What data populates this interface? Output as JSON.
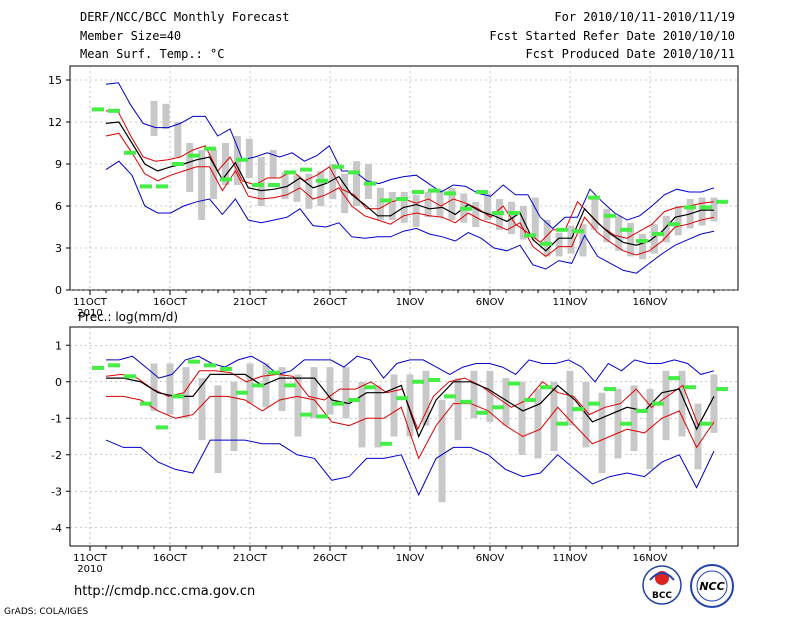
{
  "header": {
    "title": "DERF/NCC/BCC Monthly Forecast",
    "member_size": "Member Size=40",
    "variable": "Mean Surf. Temp.: °C",
    "period": "For 2010/10/11-2010/11/19",
    "started": "Fcst Started Refer Date 2010/10/10",
    "produced": "Fcst Produced Date 2010/10/11"
  },
  "footer": {
    "url": "http://cmdp.ncc.cma.gov.cn",
    "grads": "GrADS: COLA/IGES",
    "logo_bcc_text": "BCC",
    "logo_ncc_text": "NCC"
  },
  "colors": {
    "envelope": "#0000cc",
    "spread": "#dd0000",
    "mean": "#000000",
    "box": "#c8c8c8",
    "marker": "#44ee44",
    "grid": "#999999"
  },
  "chart_data": [
    {
      "type": "line",
      "title": "Mean Surf. Temp.: °C",
      "x_start": "2010-10-11",
      "x_tick_labels": [
        "11OCT",
        "16OCT",
        "21OCT",
        "26OCT",
        "1NOV",
        "6NOV",
        "11NOV",
        "16NOV"
      ],
      "x_year_label": "2010",
      "ylim": [
        0,
        16
      ],
      "yticks": [
        0,
        3,
        6,
        9,
        12,
        15
      ],
      "grid": true,
      "series": [
        {
          "name": "max",
          "values": [
            14.7,
            14.8,
            13.2,
            11.9,
            11.6,
            11.6,
            11.9,
            12.4,
            12.4,
            11.0,
            11.5,
            9.3,
            9.5,
            9.8,
            9.5,
            9.8,
            9.2,
            9.6,
            10.3,
            8.5,
            8.5,
            7.8,
            7.6,
            7.9,
            8.1,
            8.2,
            7.6,
            7.0,
            7.5,
            7.4,
            6.9,
            6.7,
            7.5,
            6.8,
            6.8,
            5.2,
            4.4,
            5.2,
            5.2,
            7.2,
            6.3,
            5.5,
            5.0,
            5.3,
            6.0,
            6.8,
            7.2,
            7.0,
            7.0,
            7.3
          ]
        },
        {
          "name": "upper",
          "values": [
            12.8,
            12.7,
            11.0,
            9.5,
            9.2,
            9.3,
            9.5,
            10.0,
            10.3,
            8.5,
            9.5,
            7.8,
            7.5,
            8.0,
            8.0,
            8.5,
            7.8,
            8.2,
            8.8,
            7.2,
            6.8,
            5.8,
            5.8,
            6.3,
            6.5,
            6.2,
            6.5,
            6.0,
            6.5,
            6.2,
            5.8,
            5.2,
            6.0,
            4.7,
            4.1,
            3.4,
            4.3,
            4.3,
            6.3,
            5.4,
            4.5,
            3.9,
            3.7,
            4.2,
            4.7,
            5.6,
            5.9,
            6.0,
            6.2,
            6.3
          ]
        },
        {
          "name": "mean",
          "values": [
            11.9,
            12.0,
            10.5,
            9.0,
            8.5,
            8.8,
            9.0,
            9.3,
            9.5,
            7.9,
            9.1,
            7.3,
            7.1,
            7.2,
            7.4,
            8.0,
            7.3,
            7.6,
            8.1,
            6.8,
            6.1,
            5.3,
            5.3,
            5.9,
            6.1,
            5.8,
            5.9,
            5.4,
            6.1,
            5.6,
            5.3,
            4.9,
            5.5,
            3.6,
            2.8,
            3.7,
            3.7,
            5.8,
            4.8,
            4.0,
            3.4,
            3.2,
            3.5,
            4.2,
            5.2,
            5.4,
            5.7,
            5.7
          ]
        },
        {
          "name": "lower",
          "values": [
            11.0,
            11.2,
            9.8,
            8.3,
            7.8,
            8.2,
            8.5,
            8.8,
            8.8,
            7.1,
            8.5,
            6.7,
            6.5,
            6.6,
            6.8,
            7.3,
            6.5,
            6.8,
            7.3,
            6.0,
            5.3,
            5.0,
            4.7,
            5.3,
            5.5,
            5.3,
            5.2,
            4.8,
            5.5,
            5.0,
            4.7,
            4.3,
            4.8,
            3.1,
            2.4,
            3.1,
            3.1,
            5.2,
            4.1,
            3.4,
            2.8,
            2.5,
            2.8,
            3.5,
            4.5,
            4.7,
            5.0,
            5.2
          ]
        },
        {
          "name": "min",
          "values": [
            8.6,
            9.2,
            8.2,
            6.0,
            5.5,
            5.5,
            6.0,
            6.3,
            6.5,
            5.4,
            6.5,
            5.0,
            4.8,
            5.0,
            5.2,
            5.8,
            4.6,
            4.5,
            4.8,
            3.8,
            3.7,
            3.8,
            3.8,
            4.2,
            4.4,
            4.0,
            3.8,
            3.5,
            4.1,
            3.7,
            3.0,
            2.8,
            3.2,
            1.8,
            1.5,
            2.1,
            1.9,
            3.9,
            2.4,
            1.9,
            1.4,
            1.2,
            1.9,
            2.6,
            3.2,
            3.6,
            4.0,
            4.2
          ]
        },
        {
          "name": "box_top",
          "values": [
            13.5,
            13.3,
            12.0,
            10.5,
            10.0,
            10.0,
            10.5,
            11.0,
            10.8,
            9.5,
            10.0,
            8.4,
            8.2,
            8.3,
            8.5,
            9.0,
            8.3,
            9.2,
            9.0,
            7.3,
            7.0,
            7.0,
            6.8,
            7.0,
            7.2,
            7.3,
            6.9,
            6.3,
            6.9,
            6.5,
            6.3,
            6.0,
            6.6,
            5.0,
            4.1,
            4.6,
            4.7,
            6.5,
            5.8,
            5.3,
            4.8,
            4.0,
            4.7,
            5.3,
            6.0,
            6.5,
            6.6,
            6.6
          ]
        },
        {
          "name": "box_bottom",
          "values": [
            11.0,
            11.5,
            9.5,
            7.0,
            5.0,
            6.5,
            7.5,
            7.5,
            8.0,
            6.0,
            8.0,
            6.5,
            6.3,
            5.8,
            6.0,
            6.5,
            5.5,
            6.0,
            6.5,
            5.0,
            5.0,
            4.8,
            4.5,
            5.2,
            5.2,
            5.0,
            4.8,
            4.5,
            5.0,
            4.3,
            4.0,
            3.6,
            3.6,
            2.4,
            2.4,
            2.6,
            2.4,
            4.3,
            3.4,
            2.8,
            2.4,
            2.2,
            2.6,
            3.4,
            3.9,
            4.4,
            4.6,
            4.9
          ]
        },
        {
          "name": "observed",
          "values": [
            12.9,
            12.8,
            9.8,
            7.4,
            7.4,
            9.0,
            9.6,
            10.1,
            7.9,
            9.3,
            7.5,
            7.5,
            8.4,
            8.6,
            7.8,
            8.8,
            8.4,
            7.6,
            6.4,
            6.5,
            7.0,
            7.1,
            6.9,
            5.8,
            7.0,
            5.5,
            5.5,
            3.9,
            3.3,
            4.3,
            4.2,
            6.6,
            5.3,
            4.3,
            3.5,
            4.0,
            4.7,
            5.9,
            5.9,
            6.3
          ]
        }
      ]
    },
    {
      "type": "line",
      "title": "Prec.: log(mm/d)",
      "x_start": "2010-10-11",
      "x_tick_labels": [
        "11OCT",
        "16OCT",
        "21OCT",
        "26OCT",
        "1NOV",
        "6NOV",
        "11NOV",
        "16NOV"
      ],
      "x_year_label": "2010",
      "ylim": [
        -4.5,
        1.5
      ],
      "yticks": [
        -4,
        -3,
        -2,
        -1,
        0,
        1
      ],
      "grid": true,
      "series": [
        {
          "name": "max",
          "values": [
            0.6,
            0.6,
            0.7,
            0.4,
            0.1,
            0.2,
            0.6,
            0.7,
            0.5,
            0.4,
            0.6,
            0.7,
            0.5,
            0.2,
            0.3,
            0.6,
            0.6,
            0.6,
            0.4,
            0.7,
            0.6,
            0.1,
            0.5,
            0.6,
            0.6,
            0.4,
            0.2,
            0.4,
            0.5,
            0.5,
            0.4,
            0.2,
            0.6,
            0.5,
            0.5,
            0.6,
            0.4,
            0.0,
            0.5,
            0.3,
            0.6,
            0.5,
            0.5,
            0.6,
            0.5,
            0.2,
            0.3
          ]
        },
        {
          "name": "upper",
          "values": [
            0.15,
            0.2,
            0.1,
            -0.2,
            -0.4,
            -0.3,
            0.3,
            0.3,
            0.25,
            0.0,
            0.15,
            0.2,
            0.15,
            -0.4,
            -0.5,
            -0.2,
            -0.2,
            0.0,
            -0.3,
            -0.2,
            -1.3,
            -0.4,
            0.0,
            0.1,
            -0.1,
            -0.4,
            -0.7,
            -0.5,
            0.0,
            -0.3,
            -0.4,
            -0.9,
            -0.7,
            -0.6,
            -0.2,
            -0.7,
            -0.4,
            -0.1,
            -1.2,
            -0.4
          ]
        },
        {
          "name": "mean",
          "values": [
            0.1,
            0.1,
            0.0,
            -0.3,
            -0.4,
            -0.4,
            0.2,
            0.2,
            0.2,
            -0.1,
            0.1,
            0.1,
            0.1,
            -0.5,
            -0.6,
            -0.3,
            -0.3,
            -0.1,
            -1.5,
            -0.5,
            -0.0,
            0.0,
            -0.2,
            -0.5,
            -0.8,
            -0.6,
            -0.1,
            -0.5,
            -1.1,
            -0.9,
            -0.7,
            -0.8,
            -0.3,
            -0.2,
            -1.3,
            -0.4
          ]
        },
        {
          "name": "lower",
          "values": [
            -0.4,
            -0.4,
            -0.5,
            -0.8,
            -1.0,
            -0.9,
            -0.4,
            -0.4,
            -0.5,
            -0.8,
            -0.5,
            -0.4,
            -0.5,
            -1.1,
            -1.2,
            -1.0,
            -1.0,
            -0.7,
            -2.1,
            -1.2,
            -0.6,
            -0.6,
            -0.8,
            -1.2,
            -1.5,
            -1.3,
            -0.7,
            -1.2,
            -1.7,
            -1.5,
            -1.3,
            -1.4,
            -1.0,
            -0.8,
            -1.8,
            -1.1
          ]
        },
        {
          "name": "min",
          "values": [
            -1.6,
            -1.8,
            -1.8,
            -2.2,
            -2.4,
            -2.5,
            -1.6,
            -1.6,
            -1.6,
            -1.7,
            -1.7,
            -2.0,
            -2.1,
            -2.7,
            -2.6,
            -2.1,
            -2.1,
            -2.0,
            -3.1,
            -2.1,
            -1.8,
            -1.8,
            -2.0,
            -2.4,
            -2.6,
            -2.5,
            -2.0,
            -2.4,
            -2.8,
            -2.6,
            -2.5,
            -2.6,
            -2.2,
            -2.0,
            -2.9,
            -1.9
          ]
        },
        {
          "name": "box_top",
          "values": [
            0.5,
            0.5,
            0.4,
            0.1,
            -0.1,
            0.0,
            0.5,
            0.5,
            0.4,
            0.2,
            0.4,
            0.4,
            0.4,
            0.0,
            -0.1,
            0.2,
            0.2,
            0.3,
            -0.5,
            0.1,
            0.3,
            0.3,
            0.1,
            0.0,
            -0.2,
            0.0,
            0.3,
            0.0,
            -0.3,
            -0.2,
            -0.1,
            -0.2,
            0.3,
            0.3,
            -0.6,
            0.2
          ]
        },
        {
          "name": "box_bottom",
          "values": [
            -0.8,
            -0.9,
            -1.0,
            -1.6,
            -2.5,
            -1.9,
            -0.6,
            -0.7,
            -0.8,
            -1.5,
            -1.0,
            -0.9,
            -1.0,
            -1.8,
            -1.8,
            -1.5,
            -1.5,
            -1.2,
            -3.3,
            -1.6,
            -1.0,
            -1.1,
            -1.2,
            -2.0,
            -2.1,
            -1.9,
            -1.2,
            -1.8,
            -2.5,
            -2.1,
            -1.9,
            -2.4,
            -1.6,
            -1.5,
            -2.4,
            -1.4
          ]
        },
        {
          "name": "observed",
          "values": [
            0.38,
            0.45,
            0.15,
            -0.6,
            -1.25,
            -0.4,
            0.55,
            0.45,
            0.35,
            -0.3,
            -0.1,
            0.25,
            -0.1,
            -0.9,
            -0.95,
            -0.6,
            -0.5,
            -0.15,
            -1.7,
            -0.45,
            0.0,
            0.05,
            -0.4,
            -0.55,
            -0.85,
            -0.7,
            -0.05,
            -0.5,
            -0.15,
            -1.15,
            -0.75,
            -0.6,
            -0.2,
            -1.15,
            -0.8,
            -0.6,
            0.1,
            -0.15,
            -1.15,
            -0.2
          ]
        }
      ]
    }
  ]
}
